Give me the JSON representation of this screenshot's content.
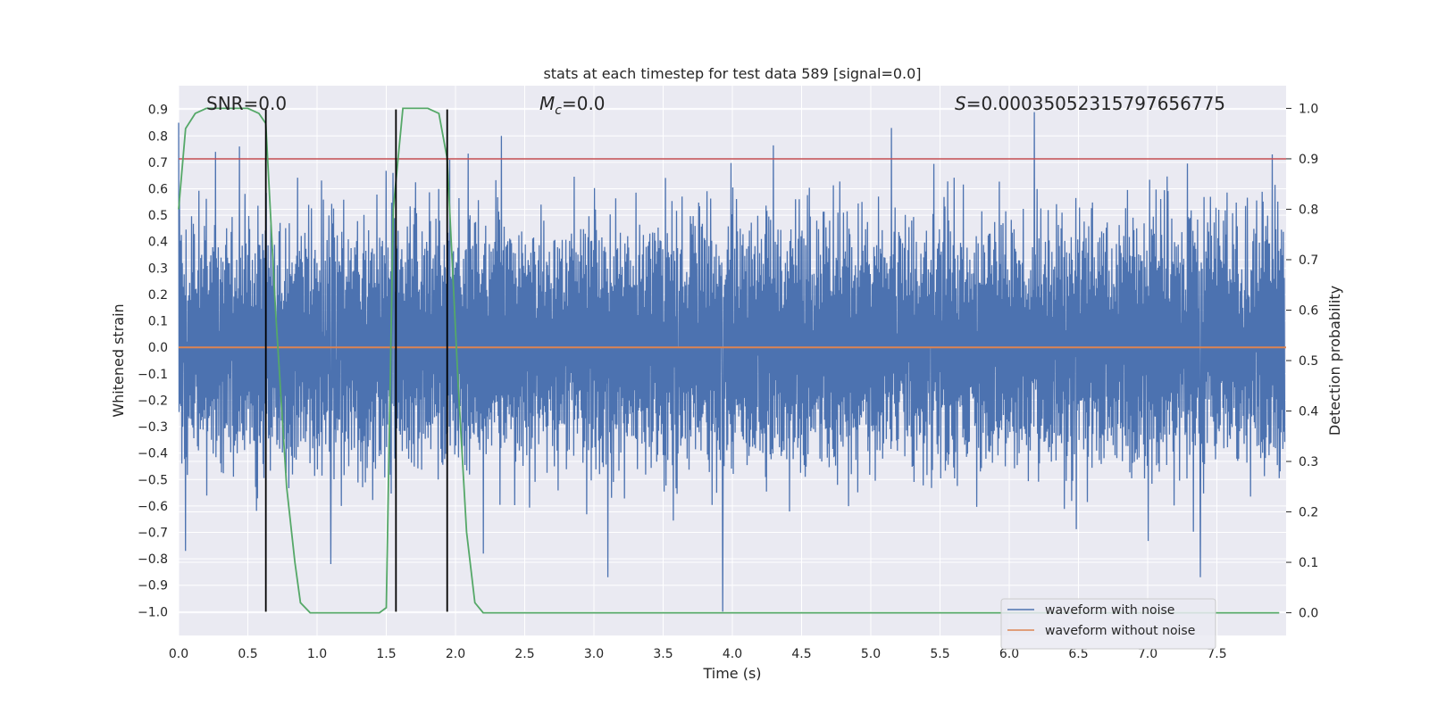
{
  "chart_data": {
    "type": "line",
    "title": "stats at each timestep for test data 589 [signal=0.0]",
    "xlabel": "Time (s)",
    "ylabel": "Whitened strain",
    "y2label": "Detection probability",
    "xlim": [
      0.0,
      8.0
    ],
    "ylim": [
      -1.09,
      0.99
    ],
    "y2lim": [
      -0.045,
      1.045
    ],
    "xticks": [
      "0.0",
      "0.5",
      "1.0",
      "1.5",
      "2.0",
      "2.5",
      "3.0",
      "3.5",
      "4.0",
      "4.5",
      "5.0",
      "5.5",
      "6.0",
      "6.5",
      "7.0",
      "7.5"
    ],
    "yticks": [
      "0.9",
      "0.8",
      "0.7",
      "0.6",
      "0.5",
      "0.4",
      "0.3",
      "0.2",
      "0.1",
      "0.0",
      "-0.1",
      "-0.2",
      "-0.3",
      "-0.4",
      "-0.5",
      "-0.6",
      "-0.7",
      "-0.8",
      "-0.9",
      "-1.0"
    ],
    "y2ticks": [
      "1.0",
      "0.9",
      "0.8",
      "0.7",
      "0.6",
      "0.5",
      "0.4",
      "0.3",
      "0.2",
      "0.1",
      "0.0"
    ],
    "grid": true,
    "legend_position": "lower-right",
    "annotations": {
      "snr": "SNR=0.0",
      "mc_symbol": "M",
      "mc_sub": "c",
      "mc_value": "=0.0",
      "s_symbol": "S",
      "s_value": "=0.00035052315797656775"
    },
    "series": [
      {
        "name": "waveform with noise",
        "color": "#4c72b0",
        "axis": "left",
        "kind": "noise",
        "x_range": [
          0.0,
          7.99
        ],
        "envelope_typical": [
          -0.35,
          0.38
        ],
        "notable_peaks": [
          {
            "x": 0.0,
            "y": 0.85
          },
          {
            "x": 0.44,
            "y": 0.76
          },
          {
            "x": 1.55,
            "y": 0.66
          },
          {
            "x": 2.33,
            "y": 0.8
          },
          {
            "x": 3.92,
            "y": 0.0
          },
          {
            "x": 5.15,
            "y": 0.83
          },
          {
            "x": 6.18,
            "y": 0.89
          },
          {
            "x": 7.9,
            "y": 0.73
          }
        ],
        "notable_troughs": [
          {
            "x": 0.05,
            "y": -0.77
          },
          {
            "x": 1.1,
            "y": -0.82
          },
          {
            "x": 2.2,
            "y": -0.78
          },
          {
            "x": 3.1,
            "y": -0.87
          },
          {
            "x": 3.93,
            "y": -1.0
          },
          {
            "x": 7.38,
            "y": -0.87
          }
        ]
      },
      {
        "name": "waveform without noise",
        "color": "#dd8452",
        "axis": "left",
        "x": [
          0.0,
          8.0
        ],
        "y": [
          0.0,
          0.0
        ]
      },
      {
        "name": "",
        "color": "#55a868",
        "axis": "right",
        "x": [
          0.0,
          0.05,
          0.12,
          0.2,
          0.3,
          0.4,
          0.5,
          0.58,
          0.63,
          0.7,
          0.78,
          0.84,
          0.88,
          0.95,
          1.0,
          1.2,
          1.45,
          1.5,
          1.55,
          1.62,
          1.7,
          1.8,
          1.88,
          1.94,
          2.02,
          2.08,
          2.14,
          2.2,
          7.95
        ],
        "y": [
          0.8,
          0.96,
          0.99,
          1.0,
          1.0,
          1.0,
          1.0,
          0.99,
          0.97,
          0.6,
          0.25,
          0.1,
          0.02,
          0.0,
          0.0,
          0.0,
          0.0,
          0.01,
          0.8,
          1.0,
          1.0,
          1.0,
          0.99,
          0.9,
          0.45,
          0.16,
          0.02,
          0.0,
          0.0
        ]
      }
    ],
    "threshold_line": {
      "axis": "right",
      "y": 0.9,
      "color": "#c44e52"
    },
    "vertical_markers": {
      "x": [
        0.63,
        1.57,
        1.94
      ],
      "y_range": [
        -1.0,
        0.9
      ],
      "color": "#000000"
    }
  }
}
